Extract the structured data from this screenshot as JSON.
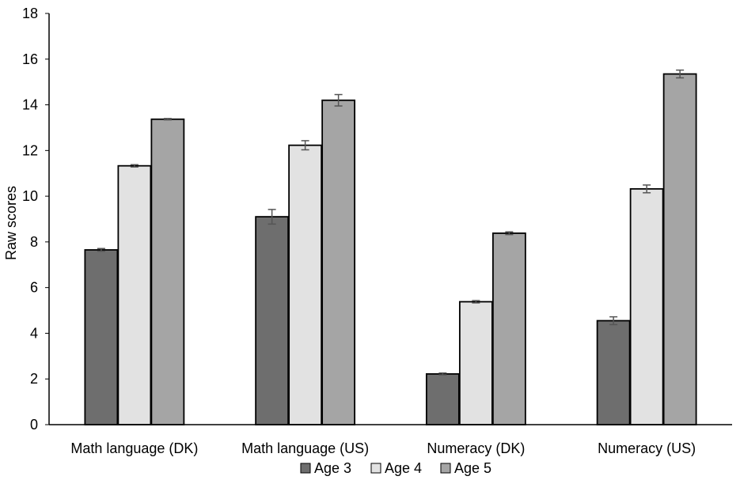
{
  "chart_data": {
    "type": "bar",
    "title": "",
    "xlabel": "",
    "ylabel": "Raw scores",
    "ylim": [
      0,
      18
    ],
    "yticks": [
      0,
      2,
      4,
      6,
      8,
      10,
      12,
      14,
      16,
      18
    ],
    "grid": false,
    "legend_position": "bottom",
    "categories": [
      "Math language (DK)",
      "Math language  (US)",
      "Numeracy  (DK)",
      "Numeracy (US)"
    ],
    "series": [
      {
        "name": "Age 3",
        "color": "#6e6e6e",
        "values": [
          7.65,
          9.1,
          2.22,
          4.55
        ],
        "errors": [
          0.06,
          0.32,
          0.04,
          0.17
        ]
      },
      {
        "name": "Age 4",
        "color": "#e2e2e2",
        "values": [
          11.33,
          12.23,
          5.38,
          10.32
        ],
        "errors": [
          0.05,
          0.2,
          0.05,
          0.17
        ]
      },
      {
        "name": "Age 5",
        "color": "#a5a5a5",
        "values": [
          13.37,
          14.2,
          8.38,
          15.35
        ],
        "errors": [
          0.03,
          0.25,
          0.06,
          0.17
        ]
      }
    ]
  }
}
